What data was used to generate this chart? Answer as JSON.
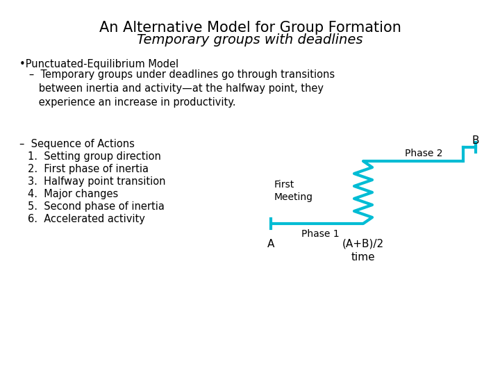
{
  "bg_color": "#ffffff",
  "title_line1": "An Alternative Model for Group Formation",
  "title_line2": "Temporary groups with deadlines",
  "title_fontsize": 15,
  "subtitle_fontsize": 14,
  "body_fontsize": 10.5,
  "diagram_color": "#00bcd4",
  "text_color": "#000000",
  "bullet1": "•Punctuated-Equilibrium Model",
  "bullet1_sub": "   –  Temporary groups under deadlines go through transitions\n      between inertia and activity—at the halfway point, they\n      experience an increase in productivity.",
  "sequence_header": "–  Sequence of Actions",
  "items": [
    "1.  Setting group direction",
    "2.  First phase of inertia",
    "3.  Halfway point transition",
    "4.  Major changes",
    "5.  Second phase of inertia",
    "6.  Accelerated activity"
  ],
  "label_A": "A",
  "label_mid": "(A+B)/2\ntime",
  "label_B": "B",
  "label_phase1": "Phase 1",
  "label_phase2": "Phase 2",
  "label_first_meeting": "First\nMeeting",
  "diagram_fontsize": 10
}
